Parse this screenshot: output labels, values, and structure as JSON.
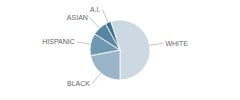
{
  "chart_data": {
    "type": "pie",
    "categories": [
      "WHITE",
      "BLACK",
      "HISPANIC",
      "ASIAN",
      "A.I."
    ],
    "values": [
      55,
      22,
      12,
      8,
      3
    ],
    "colors": [
      "#ccd9e3",
      "#9ab5c7",
      "#7098b0",
      "#5a87a0",
      "#3a7090"
    ]
  }
}
